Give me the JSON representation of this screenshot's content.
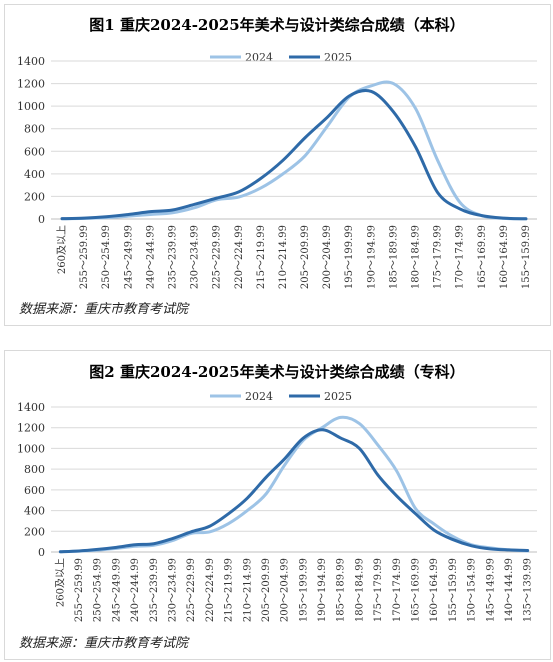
{
  "colors": {
    "s2024": "#9dc3e6",
    "s2025": "#2e6aa8"
  },
  "chart_data": [
    {
      "type": "line",
      "title": "图1  重庆2024-2025年美术与设计类综合成绩（本科）",
      "source": "数据来源：重庆市教育考试院",
      "ylim": [
        0,
        1400
      ],
      "yticks": [
        0,
        200,
        400,
        600,
        800,
        1000,
        1200,
        1400
      ],
      "grid": true,
      "legend_position": "top-center",
      "categories": [
        "260及以上",
        "255～259.99",
        "250～254.99",
        "245～249.99",
        "240～244.99",
        "235～239.99",
        "230～234.99",
        "225～229.99",
        "220～224.99",
        "215～219.99",
        "210～214.99",
        "205～209.99",
        "200～204.99",
        "195～199.99",
        "190～194.99",
        "185～189.99",
        "180～184.99",
        "175～179.99",
        "170～174.99",
        "165～169.99",
        "160～164.99",
        "155～159.99"
      ],
      "series": [
        {
          "name": "2024",
          "values": [
            2,
            5,
            12,
            25,
            40,
            55,
            100,
            170,
            195,
            275,
            400,
            560,
            820,
            1080,
            1180,
            1200,
            980,
            520,
            150,
            30,
            5,
            2
          ]
        },
        {
          "name": "2025",
          "values": [
            3,
            8,
            20,
            40,
            65,
            80,
            130,
            185,
            240,
            360,
            520,
            720,
            900,
            1090,
            1130,
            950,
            640,
            235,
            90,
            30,
            8,
            2
          ]
        }
      ]
    },
    {
      "type": "line",
      "title": "图2  重庆2024-2025年美术与设计类综合成绩（专科）",
      "source": "数据来源：重庆市教育考试院",
      "ylim": [
        0,
        1400
      ],
      "yticks": [
        0,
        200,
        400,
        600,
        800,
        1000,
        1200,
        1400
      ],
      "grid": true,
      "legend_position": "top-center",
      "categories": [
        "260及以上",
        "255～259.99",
        "250～254.99",
        "245～249.99",
        "240～244.99",
        "235～239.99",
        "230～234.99",
        "225～229.99",
        "220～224.99",
        "215～219.99",
        "210～214.99",
        "205～209.99",
        "200～204.99",
        "195～199.99",
        "190～194.99",
        "185～189.99",
        "180～184.99",
        "175～179.99",
        "170～174.99",
        "165～169.99",
        "160～164.99",
        "155～159.99",
        "150～154.99",
        "145～149.99",
        "140～144.99",
        "135～139.99"
      ],
      "series": [
        {
          "name": "2024",
          "values": [
            2,
            8,
            18,
            35,
            55,
            65,
            110,
            180,
            195,
            275,
            400,
            560,
            840,
            1080,
            1200,
            1300,
            1240,
            1030,
            780,
            420,
            270,
            150,
            70,
            40,
            20,
            10
          ]
        },
        {
          "name": "2025",
          "values": [
            3,
            10,
            25,
            45,
            70,
            80,
            130,
            195,
            250,
            370,
            520,
            720,
            900,
            1100,
            1180,
            1100,
            1000,
            740,
            540,
            370,
            210,
            120,
            60,
            30,
            20,
            15
          ]
        }
      ]
    }
  ]
}
